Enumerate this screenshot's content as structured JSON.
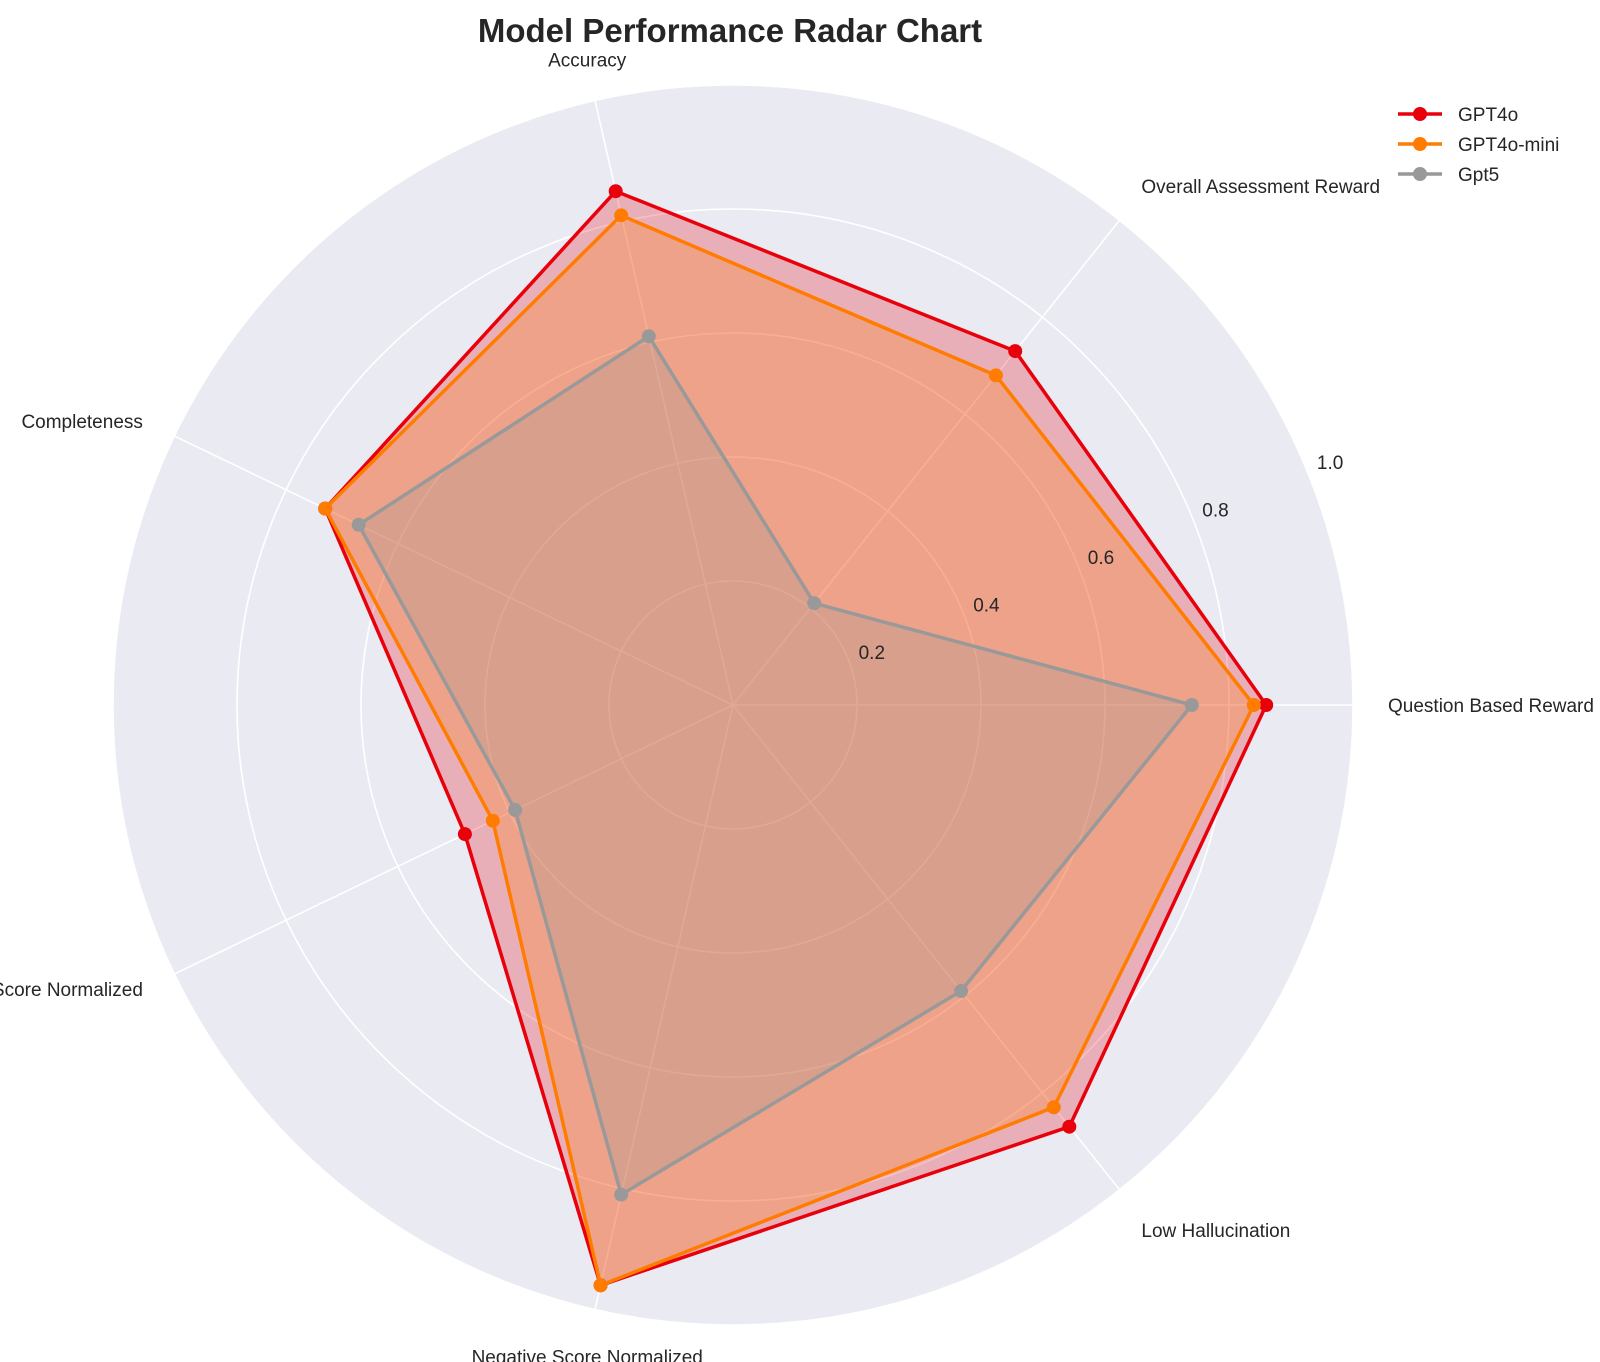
{
  "chart_data": {
    "type": "radar",
    "title": "Model Performance Radar Chart",
    "axes": [
      "Question Based Reward",
      "Overall Assessment Reward",
      "Accuracy",
      "Completeness",
      "Positive Score Normalized",
      "Negative Score Normalized",
      "Low Hallucination"
    ],
    "rlim": [
      0,
      1.0
    ],
    "rticks": [
      0.2,
      0.4,
      0.6,
      0.8,
      1.0
    ],
    "rtick_labels": [
      "0.2",
      "0.4",
      "0.6",
      "0.8",
      "1.0"
    ],
    "grid": true,
    "legend_position": "top-right",
    "series": [
      {
        "name": "GPT4o",
        "color": "#e8000b",
        "values": [
          0.86,
          0.73,
          0.85,
          0.73,
          0.48,
          0.96,
          0.87
        ]
      },
      {
        "name": "GPT4o-mini",
        "color": "#ff7c00",
        "values": [
          0.84,
          0.68,
          0.81,
          0.73,
          0.43,
          0.96,
          0.83
        ]
      },
      {
        "name": "Gpt5",
        "color": "#999999",
        "values": [
          0.74,
          0.21,
          0.61,
          0.67,
          0.39,
          0.81,
          0.59
        ]
      }
    ]
  }
}
